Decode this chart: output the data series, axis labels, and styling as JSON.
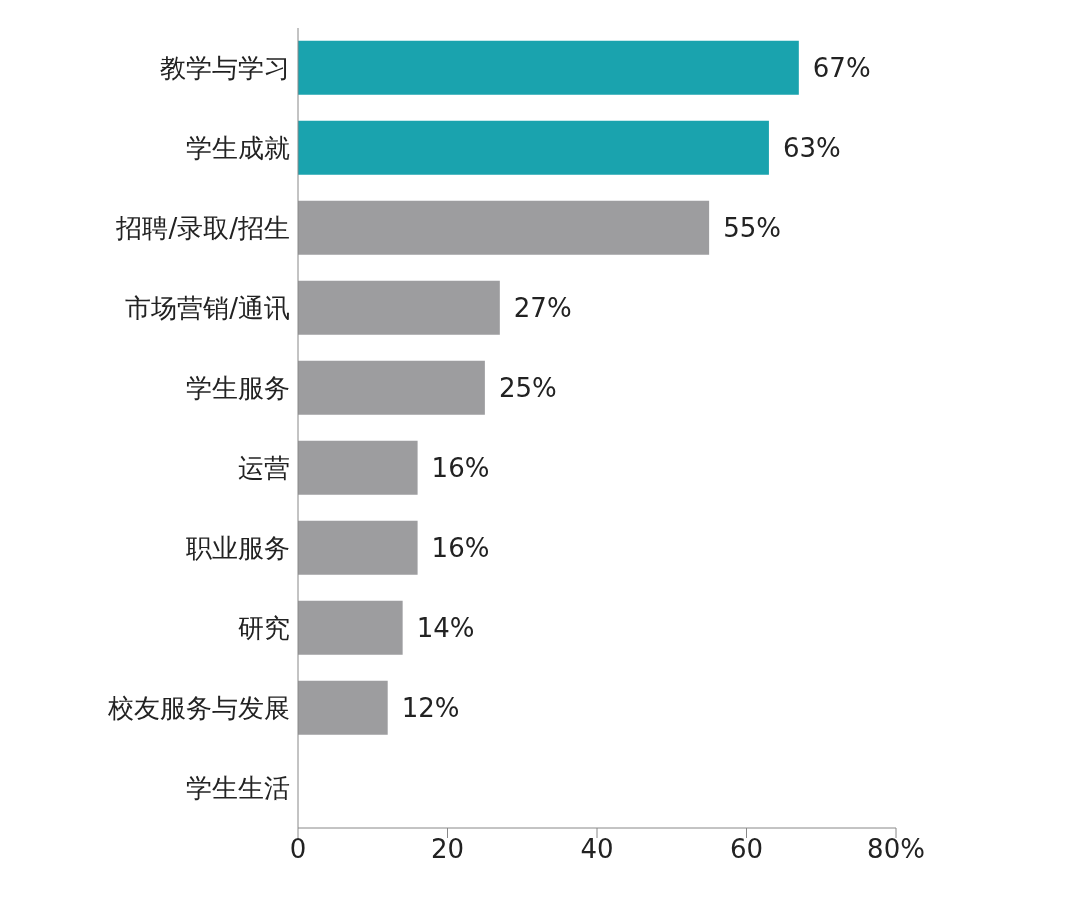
{
  "chart_data": {
    "type": "bar",
    "orientation": "horizontal",
    "categories": [
      "教学与学习",
      "学生成就",
      "招聘/录取/招生",
      "市场营销/通讯",
      "学生服务",
      "运营",
      "职业服务",
      "研究",
      "校友服务与发展",
      "学生生活"
    ],
    "values": [
      67,
      63,
      55,
      27,
      25,
      16,
      16,
      14,
      12,
      null
    ],
    "colors": [
      "#1aa3ae",
      "#1aa3ae",
      "#9d9d9f",
      "#9d9d9f",
      "#9d9d9f",
      "#9d9d9f",
      "#9d9d9f",
      "#9d9d9f",
      "#9d9d9f",
      "#9d9d9f"
    ],
    "value_labels": [
      "67%",
      "63%",
      "55%",
      "27%",
      "25%",
      "16%",
      "16%",
      "14%",
      "12%",
      null
    ],
    "xlim": [
      0,
      80
    ],
    "xticks": [
      0,
      20,
      40,
      60,
      {
        "value": 80,
        "label": "80%"
      }
    ],
    "grid": false,
    "legend": false
  }
}
